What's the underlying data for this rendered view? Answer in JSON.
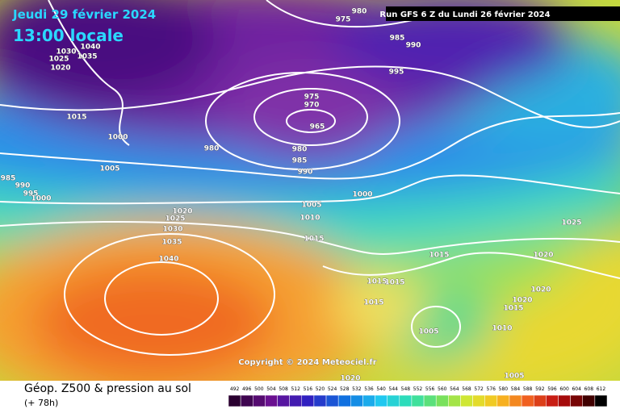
{
  "header": {
    "date": "Jeudi 29 février 2024",
    "time": "13:00 locale",
    "run": "Run GFS 6 Z du Lundi 26 février 2024"
  },
  "map": {
    "isobar_labels": [
      "980",
      "975",
      "985",
      "990",
      "995",
      "1040",
      "1030",
      "1035",
      "1025",
      "1020",
      "975",
      "970",
      "965",
      "1015",
      "1000",
      "980",
      "980",
      "985",
      "990",
      "1005",
      "985",
      "990",
      "995",
      "1000",
      "1000",
      "1005",
      "1010",
      "1020",
      "1025",
      "1030",
      "1035",
      "1040",
      "1015",
      "1015",
      "1025",
      "1020",
      "1015",
      "1015",
      "1020",
      "1015",
      "1020",
      "1015",
      "1010",
      "1005",
      "1020",
      "1005"
    ],
    "copyright": "Copyright © 2024 Meteociel.fr"
  },
  "legend": {
    "title": "Géop. Z500 & pression au sol",
    "lead_time": "(+ 78h)",
    "scale": [
      492,
      496,
      500,
      504,
      508,
      512,
      516,
      520,
      524,
      528,
      532,
      536,
      540,
      544,
      548,
      552,
      556,
      560,
      564,
      568,
      572,
      576,
      580,
      584,
      588,
      592,
      596,
      600,
      604,
      608,
      612
    ]
  }
}
